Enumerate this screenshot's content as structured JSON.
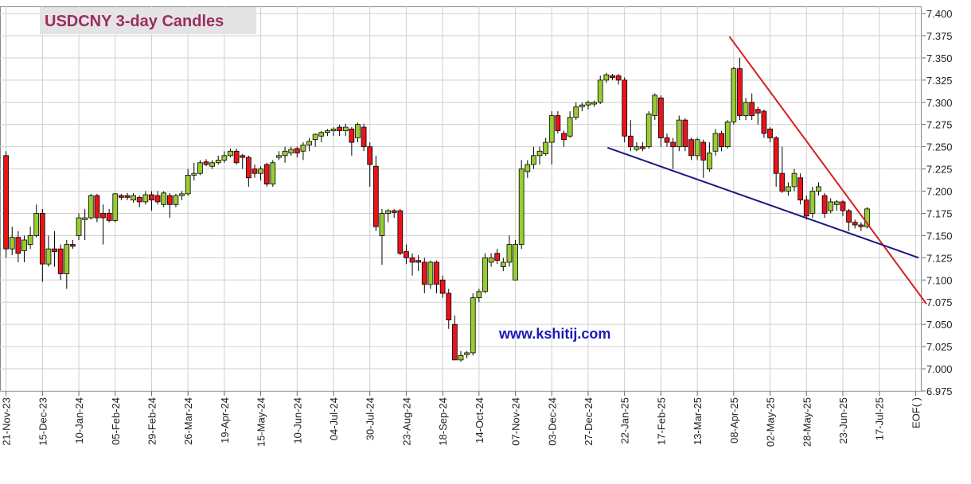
{
  "chart_data": {
    "type": "candlestick",
    "title": "USDCNY 3-day Candles",
    "watermark": "www.kshitij.com",
    "up_color": "#99cc33",
    "down_color": "#e8141a",
    "grid": true,
    "xlim": [
      -1,
      151
    ],
    "ylim": [
      6.975,
      7.4
    ],
    "yticks": [
      {
        "value": 6.975,
        "label": "6.975"
      },
      {
        "value": 7.0,
        "label": "7.000"
      },
      {
        "value": 7.025,
        "label": "7.025"
      },
      {
        "value": 7.05,
        "label": "7.050"
      },
      {
        "value": 7.075,
        "label": "7.075"
      },
      {
        "value": 7.1,
        "label": "7.100"
      },
      {
        "value": 7.125,
        "label": "7.125"
      },
      {
        "value": 7.15,
        "label": "7.150"
      },
      {
        "value": 7.175,
        "label": "7.175"
      },
      {
        "value": 7.2,
        "label": "7.200"
      },
      {
        "value": 7.225,
        "label": "7.225"
      },
      {
        "value": 7.25,
        "label": "7.250"
      },
      {
        "value": 7.275,
        "label": "7.275"
      },
      {
        "value": 7.3,
        "label": "7.300"
      },
      {
        "value": 7.325,
        "label": "7.325"
      },
      {
        "value": 7.35,
        "label": "7.350"
      },
      {
        "value": 7.375,
        "label": "7.375"
      },
      {
        "value": 7.4,
        "label": "7.400"
      }
    ],
    "label_every": 6,
    "category_labels": [
      "21-Nov-23",
      "15-Dec-23",
      "10-Jan-24",
      "05-Feb-24",
      "29-Feb-24",
      "26-Mar-24",
      "19-Apr-24",
      "15-May-24",
      "10-Jun-24",
      "04-Jul-24",
      "30-Jul-24",
      "23-Aug-24",
      "18-Sep-24",
      "14-Oct-24",
      "07-Nov-24",
      "03-Dec-24",
      "27-Dec-24",
      "22-Jan-25",
      "17-Feb-25",
      "13-Mar-25",
      "08-Apr-25",
      "02-May-25",
      "28-May-25",
      "23-Jun-25",
      "17-Jul-25",
      "EOF( )"
    ],
    "ohlc": [
      [
        7.24,
        7.245,
        7.125,
        7.135
      ],
      [
        7.135,
        7.16,
        7.128,
        7.148
      ],
      [
        7.148,
        7.155,
        7.12,
        7.13
      ],
      [
        7.133,
        7.15,
        7.12,
        7.145
      ],
      [
        7.14,
        7.16,
        7.135,
        7.15
      ],
      [
        7.15,
        7.185,
        7.148,
        7.175
      ],
      [
        7.175,
        7.18,
        7.098,
        7.118
      ],
      [
        7.118,
        7.15,
        7.115,
        7.135
      ],
      [
        7.135,
        7.155,
        7.115,
        7.132
      ],
      [
        7.135,
        7.14,
        7.1,
        7.107
      ],
      [
        7.107,
        7.145,
        7.09,
        7.14
      ],
      [
        7.14,
        7.145,
        7.135,
        7.138
      ],
      [
        7.15,
        7.175,
        7.145,
        7.17
      ],
      [
        7.168,
        7.18,
        7.145,
        7.17
      ],
      [
        7.17,
        7.197,
        7.168,
        7.195
      ],
      [
        7.195,
        7.197,
        7.165,
        7.17
      ],
      [
        7.175,
        7.185,
        7.14,
        7.17
      ],
      [
        7.175,
        7.18,
        7.165,
        7.167
      ],
      [
        7.167,
        7.198,
        7.165,
        7.197
      ],
      [
        7.195,
        7.197,
        7.19,
        7.193
      ],
      [
        7.195,
        7.198,
        7.19,
        7.193
      ],
      [
        7.19,
        7.198,
        7.187,
        7.195
      ],
      [
        7.193,
        7.195,
        7.182,
        7.188
      ],
      [
        7.188,
        7.2,
        7.185,
        7.196
      ],
      [
        7.196,
        7.2,
        7.178,
        7.19
      ],
      [
        7.195,
        7.2,
        7.185,
        7.188
      ],
      [
        7.185,
        7.2,
        7.182,
        7.198
      ],
      [
        7.195,
        7.198,
        7.17,
        7.185
      ],
      [
        7.185,
        7.197,
        7.182,
        7.195
      ],
      [
        7.195,
        7.2,
        7.19,
        7.197
      ],
      [
        7.197,
        7.225,
        7.195,
        7.218
      ],
      [
        7.218,
        7.232,
        7.212,
        7.22
      ],
      [
        7.22,
        7.235,
        7.218,
        7.232
      ],
      [
        7.233,
        7.236,
        7.228,
        7.23
      ],
      [
        7.228,
        7.235,
        7.225,
        7.232
      ],
      [
        7.232,
        7.24,
        7.23,
        7.235
      ],
      [
        7.235,
        7.245,
        7.232,
        7.24
      ],
      [
        7.24,
        7.248,
        7.238,
        7.245
      ],
      [
        7.245,
        7.248,
        7.23,
        7.232
      ],
      [
        7.24,
        7.242,
        7.225,
        7.238
      ],
      [
        7.238,
        7.24,
        7.205,
        7.215
      ],
      [
        7.225,
        7.23,
        7.215,
        7.22
      ],
      [
        7.22,
        7.228,
        7.212,
        7.225
      ],
      [
        7.23,
        7.232,
        7.205,
        7.208
      ],
      [
        7.208,
        7.235,
        7.205,
        7.232
      ],
      [
        7.238,
        7.245,
        7.235,
        7.24
      ],
      [
        7.24,
        7.25,
        7.232,
        7.245
      ],
      [
        7.243,
        7.25,
        7.24,
        7.247
      ],
      [
        7.248,
        7.25,
        7.238,
        7.243
      ],
      [
        7.245,
        7.255,
        7.235,
        7.252
      ],
      [
        7.252,
        7.26,
        7.245,
        7.256
      ],
      [
        7.258,
        7.265,
        7.25,
        7.264
      ],
      [
        7.262,
        7.268,
        7.255,
        7.266
      ],
      [
        7.266,
        7.27,
        7.262,
        7.268
      ],
      [
        7.268,
        7.272,
        7.262,
        7.27
      ],
      [
        7.272,
        7.275,
        7.262,
        7.268
      ],
      [
        7.268,
        7.276,
        7.262,
        7.272
      ],
      [
        7.27,
        7.272,
        7.24,
        7.255
      ],
      [
        7.26,
        7.277,
        7.255,
        7.275
      ],
      [
        7.272,
        7.276,
        7.245,
        7.25
      ],
      [
        7.25,
        7.255,
        7.205,
        7.23
      ],
      [
        7.228,
        7.24,
        7.155,
        7.16
      ],
      [
        7.15,
        7.18,
        7.117,
        7.175
      ],
      [
        7.175,
        7.18,
        7.165,
        7.178
      ],
      [
        7.178,
        7.18,
        7.17,
        7.176
      ],
      [
        7.178,
        7.18,
        7.128,
        7.13
      ],
      [
        7.132,
        7.14,
        7.118,
        7.125
      ],
      [
        7.125,
        7.13,
        7.105,
        7.12
      ],
      [
        7.122,
        7.128,
        7.11,
        7.12
      ],
      [
        7.12,
        7.125,
        7.085,
        7.095
      ],
      [
        7.095,
        7.122,
        7.09,
        7.12
      ],
      [
        7.12,
        7.122,
        7.085,
        7.095
      ],
      [
        7.1,
        7.105,
        7.08,
        7.085
      ],
      [
        7.085,
        7.09,
        7.045,
        7.055
      ],
      [
        7.05,
        7.06,
        7.01,
        7.01
      ],
      [
        7.01,
        7.02,
        7.008,
        7.015
      ],
      [
        7.016,
        7.02,
        7.012,
        7.018
      ],
      [
        7.018,
        7.085,
        7.015,
        7.08
      ],
      [
        7.08,
        7.09,
        7.075,
        7.087
      ],
      [
        7.087,
        7.13,
        7.085,
        7.125
      ],
      [
        7.12,
        7.13,
        7.115,
        7.125
      ],
      [
        7.13,
        7.135,
        7.118,
        7.122
      ],
      [
        7.115,
        7.125,
        7.11,
        7.12
      ],
      [
        7.12,
        7.15,
        7.115,
        7.14
      ],
      [
        7.1,
        7.145,
        7.1,
        7.14
      ],
      [
        7.14,
        7.235,
        7.135,
        7.225
      ],
      [
        7.222,
        7.235,
        7.215,
        7.23
      ],
      [
        7.23,
        7.25,
        7.225,
        7.24
      ],
      [
        7.24,
        7.25,
        7.23,
        7.245
      ],
      [
        7.242,
        7.26,
        7.24,
        7.255
      ],
      [
        7.255,
        7.29,
        7.23,
        7.285
      ],
      [
        7.285,
        7.29,
        7.265,
        7.268
      ],
      [
        7.265,
        7.268,
        7.25,
        7.258
      ],
      [
        7.262,
        7.29,
        7.26,
        7.283
      ],
      [
        7.283,
        7.3,
        7.28,
        7.295
      ],
      [
        7.295,
        7.3,
        7.29,
        7.297
      ],
      [
        7.297,
        7.302,
        7.292,
        7.3
      ],
      [
        7.298,
        7.302,
        7.295,
        7.3
      ],
      [
        7.3,
        7.33,
        7.298,
        7.325
      ],
      [
        7.325,
        7.333,
        7.322,
        7.331
      ],
      [
        7.33,
        7.332,
        7.325,
        7.328
      ],
      [
        7.33,
        7.332,
        7.32,
        7.325
      ],
      [
        7.325,
        7.328,
        7.255,
        7.262
      ],
      [
        7.262,
        7.28,
        7.245,
        7.25
      ],
      [
        7.247,
        7.255,
        7.245,
        7.25
      ],
      [
        7.25,
        7.255,
        7.245,
        7.248
      ],
      [
        7.25,
        7.29,
        7.248,
        7.287
      ],
      [
        7.285,
        7.31,
        7.28,
        7.308
      ],
      [
        7.305,
        7.308,
        7.25,
        7.26
      ],
      [
        7.26,
        7.265,
        7.25,
        7.255
      ],
      [
        7.255,
        7.26,
        7.225,
        7.25
      ],
      [
        7.25,
        7.285,
        7.245,
        7.28
      ],
      [
        7.28,
        7.282,
        7.245,
        7.25
      ],
      [
        7.258,
        7.26,
        7.235,
        7.24
      ],
      [
        7.24,
        7.26,
        7.235,
        7.258
      ],
      [
        7.255,
        7.258,
        7.215,
        7.235
      ],
      [
        7.225,
        7.255,
        7.222,
        7.243
      ],
      [
        7.245,
        7.27,
        7.24,
        7.265
      ],
      [
        7.265,
        7.268,
        7.245,
        7.25
      ],
      [
        7.25,
        7.28,
        7.248,
        7.278
      ],
      [
        7.278,
        7.34,
        7.275,
        7.338
      ],
      [
        7.338,
        7.35,
        7.28,
        7.285
      ],
      [
        7.285,
        7.305,
        7.28,
        7.3
      ],
      [
        7.3,
        7.31,
        7.28,
        7.285
      ],
      [
        7.292,
        7.295,
        7.275,
        7.288
      ],
      [
        7.29,
        7.292,
        7.26,
        7.265
      ],
      [
        7.27,
        7.272,
        7.255,
        7.26
      ],
      [
        7.26,
        7.262,
        7.205,
        7.22
      ],
      [
        7.22,
        7.25,
        7.198,
        7.2
      ],
      [
        7.2,
        7.21,
        7.195,
        7.205
      ],
      [
        7.205,
        7.225,
        7.2,
        7.22
      ],
      [
        7.215,
        7.22,
        7.185,
        7.19
      ],
      [
        7.19,
        7.195,
        7.168,
        7.172
      ],
      [
        7.175,
        7.205,
        7.17,
        7.2
      ],
      [
        7.2,
        7.21,
        7.195,
        7.205
      ],
      [
        7.195,
        7.198,
        7.17,
        7.175
      ],
      [
        7.178,
        7.192,
        7.175,
        7.188
      ],
      [
        7.185,
        7.19,
        7.178,
        7.188
      ],
      [
        7.188,
        7.19,
        7.172,
        7.178
      ],
      [
        7.178,
        7.18,
        7.155,
        7.165
      ],
      [
        7.165,
        7.168,
        7.158,
        7.162
      ],
      [
        7.162,
        7.165,
        7.155,
        7.16
      ],
      [
        7.16,
        7.182,
        7.158,
        7.18
      ],
      null,
      null,
      null,
      null,
      null,
      null,
      null,
      null
    ],
    "trendlines": [
      {
        "color": "#d42020",
        "x": [
          119.3,
          151.8
        ],
        "y": [
          7.374,
          7.073
        ]
      },
      {
        "color": "#1a1a80",
        "x": [
          99.2,
          150.5
        ],
        "y": [
          7.249,
          7.125
        ]
      }
    ]
  }
}
